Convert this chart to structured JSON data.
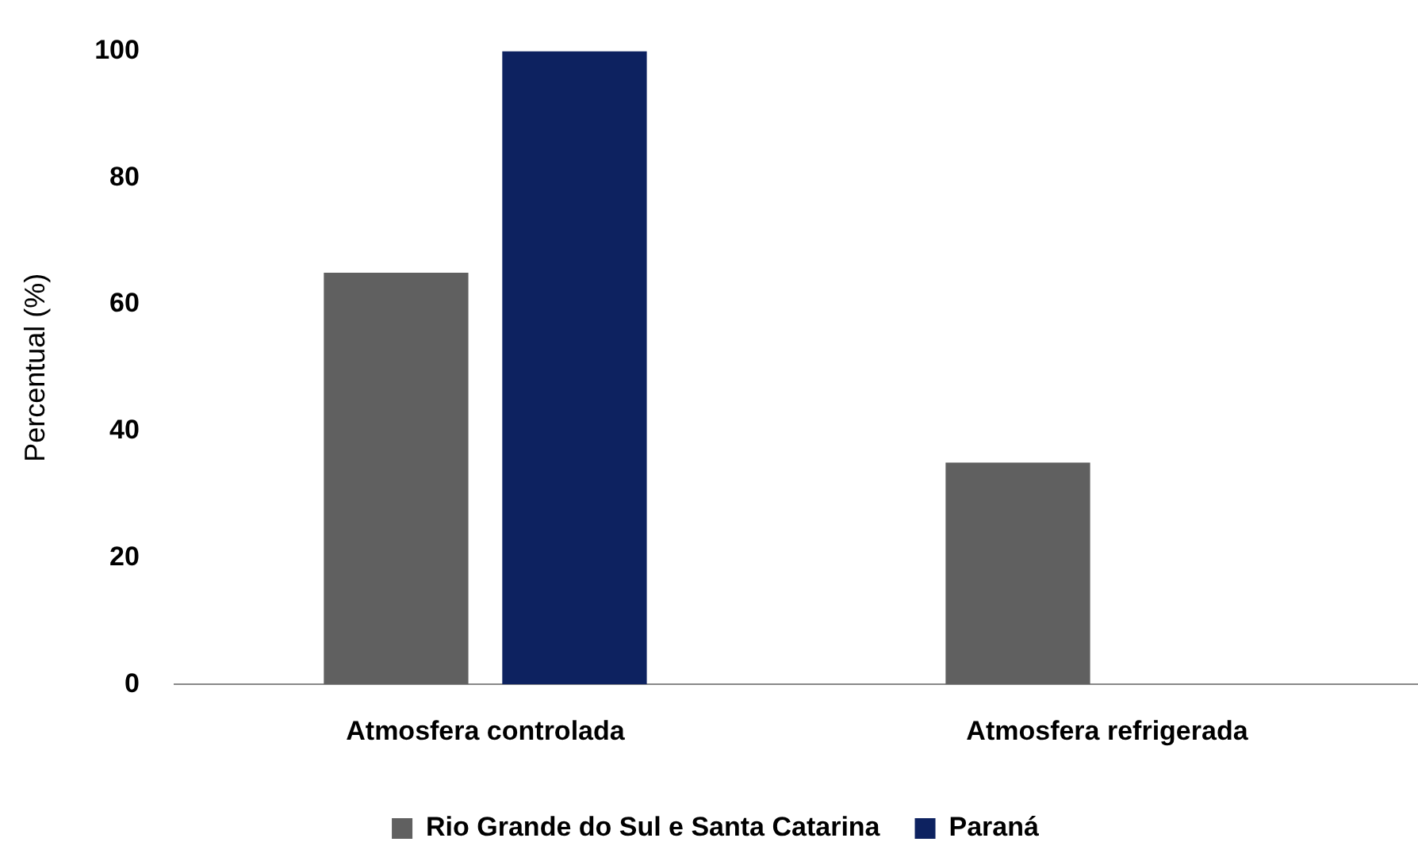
{
  "chart_data": {
    "type": "bar",
    "ylabel": "Percentual (%)",
    "categories": [
      "Atmosfera controlada",
      "Atmosfera refrigerada"
    ],
    "series": [
      {
        "name": "Rio Grande do Sul e Santa Catarina",
        "color": "#606060",
        "values": [
          65,
          35
        ]
      },
      {
        "name": "Paraná",
        "color": "#0d2260",
        "values": [
          100,
          0
        ]
      }
    ],
    "ylim": [
      0,
      100
    ],
    "yticks": [
      0,
      20,
      40,
      60,
      80,
      100
    ],
    "grid": false,
    "legend": "bottom"
  }
}
